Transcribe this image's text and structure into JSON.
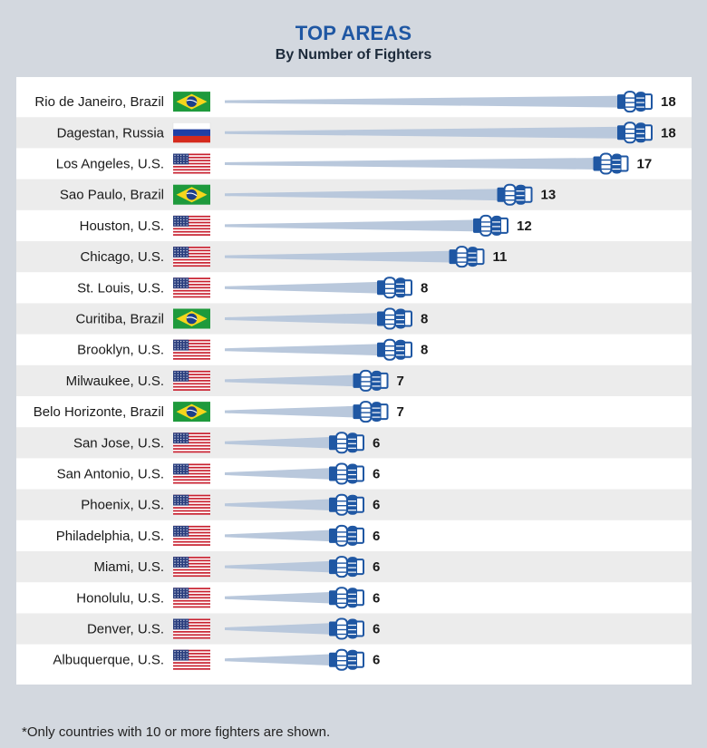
{
  "header": {
    "title": "TOP AREAS",
    "subtitle": "By Number of Fighters"
  },
  "footnote": "*Only countries with 10 or more fighters are shown.",
  "colors": {
    "bar": "#b9c8dc",
    "fist": "#1f57a3",
    "title": "#1f57a3",
    "row_alt": "#ececec"
  },
  "chart_data": {
    "type": "bar",
    "orientation": "horizontal",
    "title": "TOP AREAS",
    "subtitle": "By Number of Fighters",
    "categories": [
      "Rio de Janeiro, Brazil",
      "Dagestan, Russia",
      "Los Angeles, U.S.",
      "Sao Paulo, Brazil",
      "Houston, U.S.",
      "Chicago, U.S.",
      "St. Louis, U.S.",
      "Curitiba, Brazil",
      "Brooklyn, U.S.",
      "Milwaukee, U.S.",
      "Belo Horizonte, Brazil",
      "San Jose, U.S.",
      "San Antonio, U.S.",
      "Phoenix, U.S.",
      "Philadelphia, U.S.",
      "Miami, U.S.",
      "Honolulu, U.S.",
      "Denver, U.S.",
      "Albuquerque, U.S."
    ],
    "values": [
      18,
      18,
      17,
      13,
      12,
      11,
      8,
      8,
      8,
      7,
      7,
      6,
      6,
      6,
      6,
      6,
      6,
      6,
      6
    ],
    "flags": [
      "brazil-flag-icon",
      "russia-flag-icon",
      "us-flag-icon",
      "brazil-flag-icon",
      "us-flag-icon",
      "us-flag-icon",
      "us-flag-icon",
      "brazil-flag-icon",
      "us-flag-icon",
      "us-flag-icon",
      "brazil-flag-icon",
      "us-flag-icon",
      "us-flag-icon",
      "us-flag-icon",
      "us-flag-icon",
      "us-flag-icon",
      "us-flag-icon",
      "us-flag-icon",
      "us-flag-icon"
    ],
    "marker_icon": "fist-bump-icon",
    "grid": false
  }
}
